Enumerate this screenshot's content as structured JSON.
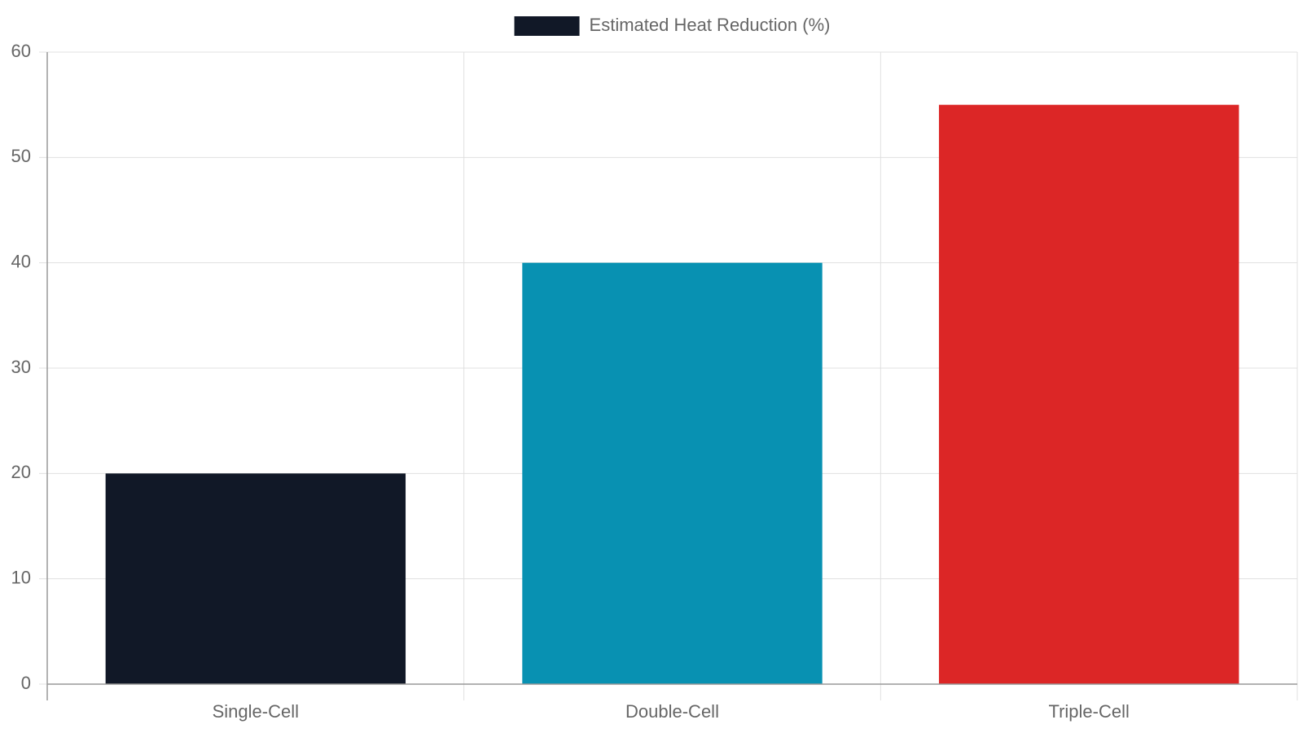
{
  "chart_data": {
    "type": "bar",
    "categories": [
      "Single-Cell",
      "Double-Cell",
      "Triple-Cell"
    ],
    "series": [
      {
        "name": "Estimated Heat Reduction (%)",
        "colors": [
          "#111827",
          "#0891b2",
          "#dc2626"
        ],
        "values": [
          20,
          40,
          55
        ]
      }
    ],
    "ylim": [
      0,
      60
    ],
    "yticks": [
      0,
      10,
      20,
      30,
      40,
      50,
      60
    ],
    "grid": true,
    "legend": "top"
  }
}
